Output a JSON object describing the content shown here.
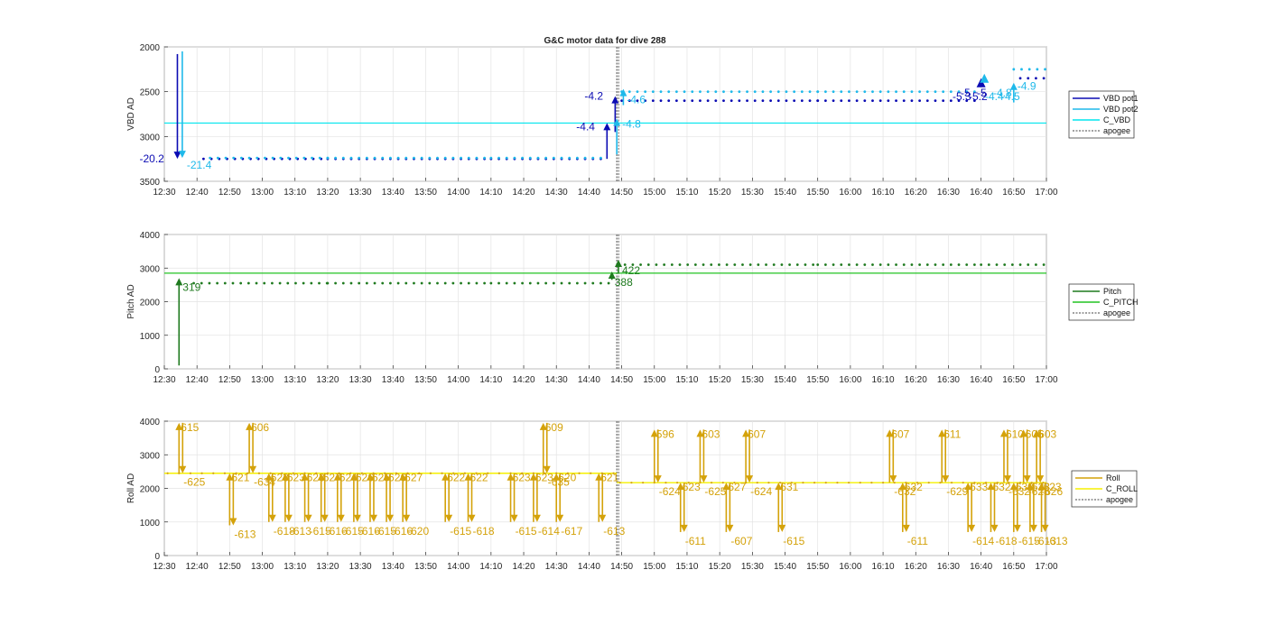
{
  "figure": {
    "title": "G&C motor data for dive 288"
  },
  "chart_data": [
    {
      "type": "line",
      "id": "vbd",
      "ylabel": "VBD AD",
      "y_reversed": true,
      "ylim": [
        2000,
        3500
      ],
      "yticks": [
        2000,
        2500,
        3000,
        3500
      ],
      "xticks": [
        "12:30",
        "12:40",
        "12:50",
        "13:00",
        "13:10",
        "13:20",
        "13:30",
        "13:40",
        "13:50",
        "14:00",
        "14:10",
        "14:20",
        "14:30",
        "14:40",
        "14:50",
        "15:00",
        "15:10",
        "15:20",
        "15:30",
        "15:40",
        "15:50",
        "16:00",
        "16:10",
        "16:20",
        "16:30",
        "16:40",
        "16:50",
        "17:00"
      ],
      "xlim_minutes": [
        750,
        1020
      ],
      "grid": true,
      "apogee_minutes": 888.5,
      "legend": {
        "position": "right",
        "entries": [
          "VBD pot1",
          "VBD pot2",
          "C_VBD",
          "apogee"
        ]
      },
      "colors": {
        "pot1": "#0b0bb3",
        "pot2": "#1fb9ea",
        "c_vbd": "#00e5ee",
        "apogee": "#444444"
      },
      "c_vbd_value": 2850,
      "pot1_series": [
        {
          "x": 762,
          "y": 3250
        },
        {
          "x": 800,
          "y": 3250
        },
        {
          "x": 850,
          "y": 3250
        },
        {
          "x": 884,
          "y": 3250
        },
        {
          "x": 890,
          "y": 2600
        },
        {
          "x": 950,
          "y": 2600
        },
        {
          "x": 1000,
          "y": 2600
        },
        {
          "x": 1012,
          "y": 2350
        },
        {
          "x": 1020,
          "y": 2350
        }
      ],
      "pot2_series": [
        {
          "x": 764,
          "y": 3240
        },
        {
          "x": 800,
          "y": 3240
        },
        {
          "x": 850,
          "y": 3240
        },
        {
          "x": 885,
          "y": 3240
        },
        {
          "x": 890,
          "y": 2500
        },
        {
          "x": 950,
          "y": 2500
        },
        {
          "x": 1000,
          "y": 2500
        },
        {
          "x": 1010,
          "y": 2250
        },
        {
          "x": 1020,
          "y": 2250
        }
      ],
      "moves": [
        {
          "x": 754,
          "from": 2080,
          "to": 3250,
          "series": "pot1",
          "label": "-20.2",
          "lx": -42,
          "ly": 4
        },
        {
          "x": 755.5,
          "from": 2050,
          "to": 3240,
          "series": "pot2",
          "label": "-21.4",
          "lx": 5,
          "ly": 12
        },
        {
          "x": 888,
          "from": 2950,
          "to": 2550,
          "series": "pot1",
          "label": "-4.2",
          "lx": -34,
          "ly": 4
        },
        {
          "x": 885.5,
          "from": 3250,
          "to": 2850,
          "series": "pot1",
          "label": "-4.4",
          "lx": -34,
          "ly": 8
        },
        {
          "x": 890.5,
          "from": 2650,
          "to": 2470,
          "series": "pot2",
          "label": "-4.6",
          "lx": 4,
          "ly": 16
        },
        {
          "x": 888.5,
          "from": 3200,
          "to": 2800,
          "series": "pot2",
          "label": "-4.8",
          "lx": 6,
          "ly": 10
        },
        {
          "x": 1010,
          "from": 2620,
          "to": 2400,
          "series": "pot2",
          "label": "-4.9",
          "lx": 4,
          "ly": 8
        }
      ],
      "cluster_labels": [
        "-5.3",
        "-5",
        "-5.2",
        "-5",
        "-4.4",
        "-4.8",
        "-4.5"
      ]
    },
    {
      "type": "line",
      "id": "pitch",
      "ylabel": "Pitch AD",
      "y_reversed": false,
      "ylim": [
        0,
        4000
      ],
      "yticks": [
        0,
        1000,
        2000,
        3000,
        4000
      ],
      "xticks": [
        "12:30",
        "12:40",
        "12:50",
        "13:00",
        "13:10",
        "13:20",
        "13:30",
        "13:40",
        "13:50",
        "14:00",
        "14:10",
        "14:20",
        "14:30",
        "14:40",
        "14:50",
        "15:00",
        "15:10",
        "15:20",
        "15:30",
        "15:40",
        "15:50",
        "16:00",
        "16:10",
        "16:20",
        "16:30",
        "16:40",
        "16:50",
        "17:00"
      ],
      "xlim_minutes": [
        750,
        1020
      ],
      "grid": true,
      "apogee_minutes": 888.5,
      "legend": {
        "position": "right",
        "entries": [
          "Pitch",
          "C_PITCH",
          "apogee"
        ]
      },
      "colors": {
        "pitch": "#1f7a1f",
        "c_pitch": "#22c422",
        "apogee": "#444444"
      },
      "c_pitch_value": 2850,
      "series": [
        {
          "x": 759,
          "y": 2550
        },
        {
          "x": 800,
          "y": 2550
        },
        {
          "x": 850,
          "y": 2550
        },
        {
          "x": 886,
          "y": 2550
        },
        {
          "x": 891,
          "y": 3100
        },
        {
          "x": 950,
          "y": 3100
        },
        {
          "x": 1000,
          "y": 3100
        },
        {
          "x": 1020,
          "y": 3100
        }
      ],
      "moves": [
        {
          "x": 754.5,
          "from": 100,
          "to": 2700,
          "label": "319",
          "lx": 4,
          "ly": 14
        },
        {
          "x": 887,
          "from": 2650,
          "to": 2900,
          "label": "388",
          "lx": 3,
          "ly": 16
        },
        {
          "x": 889,
          "from": 2850,
          "to": 3250,
          "label": "422",
          "lx": 4,
          "ly": 16
        }
      ]
    },
    {
      "type": "line",
      "id": "roll",
      "ylabel": "Roll AD",
      "y_reversed": false,
      "ylim": [
        0,
        4000
      ],
      "yticks": [
        0,
        1000,
        2000,
        3000,
        4000
      ],
      "xticks": [
        "12:30",
        "12:40",
        "12:50",
        "13:00",
        "13:10",
        "13:20",
        "13:30",
        "13:40",
        "13:50",
        "14:00",
        "14:10",
        "14:20",
        "14:30",
        "14:40",
        "14:50",
        "15:00",
        "15:10",
        "15:20",
        "15:30",
        "15:40",
        "15:50",
        "16:00",
        "16:10",
        "16:20",
        "16:30",
        "16:40",
        "16:50",
        "17:00"
      ],
      "xlim_minutes": [
        750,
        1020
      ],
      "grid": true,
      "apogee_minutes": 888.5,
      "legend": {
        "position": "right",
        "entries": [
          "Roll",
          "C_ROLL",
          "apogee"
        ]
      },
      "colors": {
        "roll": "#d4a20a",
        "c_roll": "#f5f000",
        "apogee": "#444444"
      },
      "c_roll_segments": [
        {
          "x1": 750,
          "x2": 888.5,
          "y": 2450
        },
        {
          "x1": 888.5,
          "x2": 1020,
          "y": 2170
        }
      ],
      "pairs": [
        {
          "x": 754.5,
          "top": 3950,
          "bot": 2450,
          "up_label": "615",
          "down_label": "-625"
        },
        {
          "x": 770,
          "top": 2450,
          "bot": 900,
          "up_label": "621",
          "down_label": "-613"
        },
        {
          "x": 776,
          "top": 3950,
          "bot": 2450,
          "up_label": "606",
          "down_label": "-634"
        },
        {
          "x": 782,
          "top": 2450,
          "bot": 1000,
          "up_label": "623",
          "down_label": "-618"
        },
        {
          "x": 787,
          "top": 2450,
          "bot": 1000,
          "up_label": "623",
          "down_label": "-613"
        },
        {
          "x": 793,
          "top": 2450,
          "bot": 1000,
          "up_label": "623",
          "down_label": "-615"
        },
        {
          "x": 798,
          "top": 2450,
          "bot": 1000,
          "up_label": "627",
          "down_label": "-616"
        },
        {
          "x": 803,
          "top": 2450,
          "bot": 1000,
          "up_label": "624",
          "down_label": "-615"
        },
        {
          "x": 808,
          "top": 2450,
          "bot": 1000,
          "up_label": "626",
          "down_label": "-616"
        },
        {
          "x": 813,
          "top": 2450,
          "bot": 1000,
          "up_label": "625",
          "down_label": "-615"
        },
        {
          "x": 818,
          "top": 2450,
          "bot": 1000,
          "up_label": "626",
          "down_label": "-616"
        },
        {
          "x": 823,
          "top": 2450,
          "bot": 1000,
          "up_label": "627",
          "down_label": "-620"
        },
        {
          "x": 836,
          "top": 2450,
          "bot": 1000,
          "up_label": "622",
          "down_label": "-615"
        },
        {
          "x": 843,
          "top": 2450,
          "bot": 1000,
          "up_label": "622",
          "down_label": "-618"
        },
        {
          "x": 856,
          "top": 2450,
          "bot": 1000,
          "up_label": "623",
          "down_label": "-615"
        },
        {
          "x": 863,
          "top": 2450,
          "bot": 1000,
          "up_label": "623",
          "down_label": "-614"
        },
        {
          "x": 866,
          "top": 3950,
          "bot": 2450,
          "up_label": "609",
          "down_label": "-635"
        },
        {
          "x": 870,
          "top": 2450,
          "bot": 1000,
          "up_label": "620",
          "down_label": "-617"
        },
        {
          "x": 883,
          "top": 2450,
          "bot": 1000,
          "up_label": "621",
          "down_label": "-613"
        },
        {
          "x": 900,
          "top": 3750,
          "bot": 2170,
          "up_label": "596",
          "down_label": "-624"
        },
        {
          "x": 908,
          "top": 2170,
          "bot": 700,
          "up_label": "623",
          "down_label": "-611"
        },
        {
          "x": 914,
          "top": 3750,
          "bot": 2170,
          "up_label": "603",
          "down_label": "-625"
        },
        {
          "x": 922,
          "top": 2170,
          "bot": 700,
          "up_label": "627",
          "down_label": "-607"
        },
        {
          "x": 928,
          "top": 3750,
          "bot": 2170,
          "up_label": "607",
          "down_label": "-624"
        },
        {
          "x": 938,
          "top": 2170,
          "bot": 700,
          "up_label": "631",
          "down_label": "-615"
        },
        {
          "x": 972,
          "top": 3750,
          "bot": 2170,
          "up_label": "607",
          "down_label": "-632"
        },
        {
          "x": 976,
          "top": 2170,
          "bot": 700,
          "up_label": "632",
          "down_label": "-611"
        },
        {
          "x": 988,
          "top": 3750,
          "bot": 2170,
          "up_label": "611",
          "down_label": "-629"
        },
        {
          "x": 996,
          "top": 2170,
          "bot": 700,
          "up_label": "633",
          "down_label": "-614"
        },
        {
          "x": 1003,
          "top": 2170,
          "bot": 700,
          "up_label": "632",
          "down_label": "-618"
        },
        {
          "x": 1007,
          "top": 3750,
          "bot": 2170,
          "up_label": "610",
          "down_label": "-632"
        },
        {
          "x": 1010,
          "top": 2170,
          "bot": 700,
          "up_label": "630",
          "down_label": "-615"
        },
        {
          "x": 1013,
          "top": 3750,
          "bot": 2170,
          "up_label": "605",
          "down_label": "-625"
        },
        {
          "x": 1015,
          "top": 2170,
          "bot": 700,
          "up_label": "623",
          "down_label": "-613"
        },
        {
          "x": 1017,
          "top": 3750,
          "bot": 2170,
          "up_label": "603",
          "down_label": "-626"
        },
        {
          "x": 1018.5,
          "top": 2170,
          "bot": 700,
          "up_label": "623",
          "down_label": "-613"
        }
      ]
    }
  ]
}
